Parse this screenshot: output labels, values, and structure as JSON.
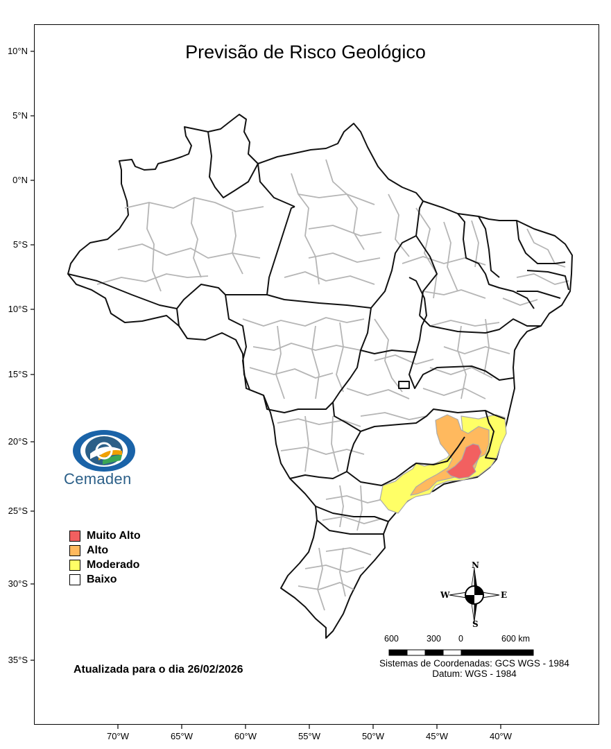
{
  "title": "Previsão de Risco Geológico",
  "latitude_ticks": [
    "10°N",
    "5°N",
    "0°N",
    "5°S",
    "10°S",
    "15°S",
    "20°S",
    "25°S",
    "30°S",
    "35°S"
  ],
  "longitude_ticks": [
    "70°W",
    "65°W",
    "60°W",
    "55°W",
    "50°W",
    "45°W",
    "40°W"
  ],
  "logo": {
    "name": "Cemaden"
  },
  "legend": [
    {
      "label": "Muito Alto",
      "color": "#f26060"
    },
    {
      "label": "Alto",
      "color": "#ffb95e"
    },
    {
      "label": "Moderado",
      "color": "#ffff66"
    },
    {
      "label": "Baixo",
      "color": "#ffffff"
    }
  ],
  "updated_text": "Atualizada para o dia 26/02/2026",
  "compass": {
    "n": "N",
    "s": "S",
    "e": "E",
    "w": "W"
  },
  "scale_bar": {
    "labels": [
      "600",
      "300",
      "0",
      "600 km"
    ]
  },
  "coordinate_system": {
    "line1": "Sistemas de Coordenadas: GCS WGS - 1984",
    "line2": "Datum: WGS - 1984"
  },
  "colors": {
    "state_border": "#111111",
    "municipal_border": "#b5b5b5",
    "logo_blue": "#2b5f88"
  }
}
